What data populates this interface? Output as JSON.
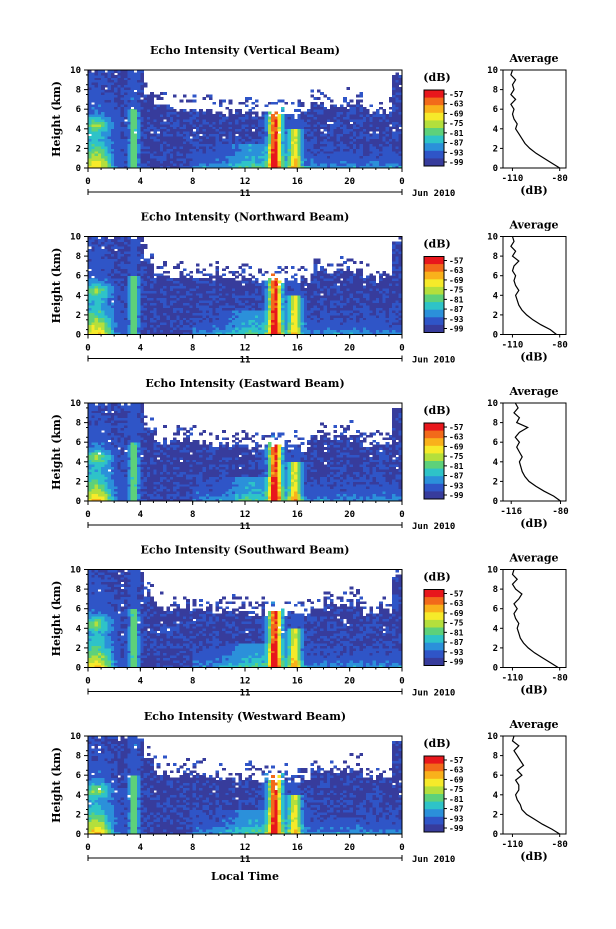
{
  "figure": {
    "xlabel": "Local Time"
  },
  "colorbar": {
    "unit_label": "(dB)",
    "levels": [
      "-57",
      "-63",
      "-69",
      "-75",
      "-81",
      "-87",
      "-93",
      "-99"
    ],
    "colors": [
      "#e8171c",
      "#f26a1a",
      "#f9b11b",
      "#f6ea2a",
      "#b4df3c",
      "#5dd17a",
      "#2ec3c8",
      "#2b90da",
      "#2f55c7",
      "#373c9c"
    ]
  },
  "chart_data": [
    {
      "type": "heatmap",
      "title": "Echo Intensity (Vertical Beam)",
      "ylabel": "Height (km)",
      "xlim": [
        0,
        24
      ],
      "ylim": [
        0,
        10
      ],
      "xticks": [
        "0",
        "4",
        "8",
        "12",
        "16",
        "20",
        "0"
      ],
      "yticks": [
        "0",
        "2",
        "4",
        "6",
        "8",
        "10"
      ],
      "date_label": "11",
      "date_suffix": "Jun 2010",
      "profile": {
        "title": "Average",
        "xlabel": "(dB)",
        "xticks": [
          "-110",
          "-80"
        ],
        "height": [
          0,
          0.5,
          1,
          1.5,
          2,
          2.5,
          3,
          3.5,
          4,
          4.5,
          5,
          5.5,
          6,
          6.5,
          7,
          7.5,
          8,
          8.5,
          9,
          9.5,
          10
        ],
        "db": [
          -80,
          -85,
          -90,
          -95,
          -99,
          -102,
          -104,
          -106,
          -108,
          -107,
          -109,
          -110,
          -109,
          -111,
          -108,
          -111,
          -109,
          -110,
          -108,
          -111,
          -110
        ]
      }
    },
    {
      "type": "heatmap",
      "title": "Echo Intensity (Northward Beam)",
      "ylabel": "Height (km)",
      "xlim": [
        0,
        24
      ],
      "ylim": [
        0,
        10
      ],
      "xticks": [
        "0",
        "4",
        "8",
        "12",
        "16",
        "20",
        "0"
      ],
      "yticks": [
        "0",
        "2",
        "4",
        "6",
        "8",
        "10"
      ],
      "date_label": "11",
      "date_suffix": "Jun 2010",
      "profile": {
        "title": "Average",
        "xlabel": "(dB)",
        "xticks": [
          "-110",
          "-80"
        ],
        "height": [
          0,
          0.5,
          1,
          1.5,
          2,
          2.5,
          3,
          3.5,
          4,
          4.5,
          5,
          5.5,
          6,
          6.5,
          7,
          7.5,
          8,
          8.5,
          9,
          9.5,
          10
        ],
        "db": [
          -82,
          -86,
          -92,
          -97,
          -101,
          -104,
          -106,
          -107,
          -108,
          -106,
          -108,
          -109,
          -108,
          -110,
          -109,
          -106,
          -110,
          -108,
          -111,
          -109,
          -110
        ]
      }
    },
    {
      "type": "heatmap",
      "title": "Echo Intensity (Eastward Beam)",
      "ylabel": "Height (km)",
      "xlim": [
        0,
        24
      ],
      "ylim": [
        0,
        10
      ],
      "xticks": [
        "0",
        "4",
        "8",
        "12",
        "16",
        "20",
        "0"
      ],
      "yticks": [
        "0",
        "2",
        "4",
        "6",
        "8",
        "10"
      ],
      "date_label": "11",
      "date_suffix": "Jun 2010",
      "profile": {
        "title": "Average",
        "xlabel": "(dB)",
        "xticks": [
          "-116",
          "-80"
        ],
        "height": [
          0,
          0.5,
          1,
          1.5,
          2,
          2.5,
          3,
          3.5,
          4,
          4.5,
          5,
          5.5,
          6,
          6.5,
          7,
          7.5,
          8,
          8.5,
          9,
          9.5,
          10
        ],
        "db": [
          -80,
          -85,
          -92,
          -98,
          -103,
          -106,
          -108,
          -109,
          -110,
          -108,
          -110,
          -112,
          -110,
          -113,
          -110,
          -104,
          -112,
          -110,
          -114,
          -111,
          -113
        ]
      }
    },
    {
      "type": "heatmap",
      "title": "Echo Intensity (Southward Beam)",
      "ylabel": "Height (km)",
      "xlim": [
        0,
        24
      ],
      "ylim": [
        0,
        10
      ],
      "xticks": [
        "0",
        "4",
        "8",
        "12",
        "16",
        "20",
        "0"
      ],
      "yticks": [
        "0",
        "2",
        "4",
        "6",
        "8",
        "10"
      ],
      "date_label": "11",
      "date_suffix": "Jun 2010",
      "profile": {
        "title": "Average",
        "xlabel": "(dB)",
        "xticks": [
          "-110",
          "-80"
        ],
        "height": [
          0,
          0.5,
          1,
          1.5,
          2,
          2.5,
          3,
          3.5,
          4,
          4.5,
          5,
          5.5,
          6,
          6.5,
          7,
          7.5,
          8,
          8.5,
          9,
          9.5,
          10
        ],
        "db": [
          -81,
          -86,
          -91,
          -96,
          -100,
          -103,
          -105,
          -106,
          -107,
          -106,
          -108,
          -109,
          -107,
          -109,
          -106,
          -104,
          -108,
          -110,
          -107,
          -110,
          -109
        ]
      }
    },
    {
      "type": "heatmap",
      "title": "Echo Intensity (Westward Beam)",
      "ylabel": "Height (km)",
      "xlim": [
        0,
        24
      ],
      "ylim": [
        0,
        10
      ],
      "xticks": [
        "0",
        "4",
        "8",
        "12",
        "16",
        "20",
        "0"
      ],
      "yticks": [
        "0",
        "2",
        "4",
        "6",
        "8",
        "10"
      ],
      "date_label": "11",
      "date_suffix": "Jun 2010",
      "profile": {
        "title": "Average",
        "xlabel": "(dB)",
        "xticks": [
          "-110",
          "-80"
        ],
        "height": [
          0,
          0.5,
          1,
          1.5,
          2,
          2.5,
          3,
          3.5,
          4,
          4.5,
          5,
          5.5,
          6,
          6.5,
          7,
          7.5,
          8,
          8.5,
          9,
          9.5,
          10
        ],
        "db": [
          -80,
          -85,
          -91,
          -96,
          -101,
          -104,
          -105,
          -107,
          -108,
          -106,
          -106,
          -108,
          -104,
          -107,
          -103,
          -105,
          -107,
          -109,
          -106,
          -110,
          -109
        ]
      }
    }
  ]
}
